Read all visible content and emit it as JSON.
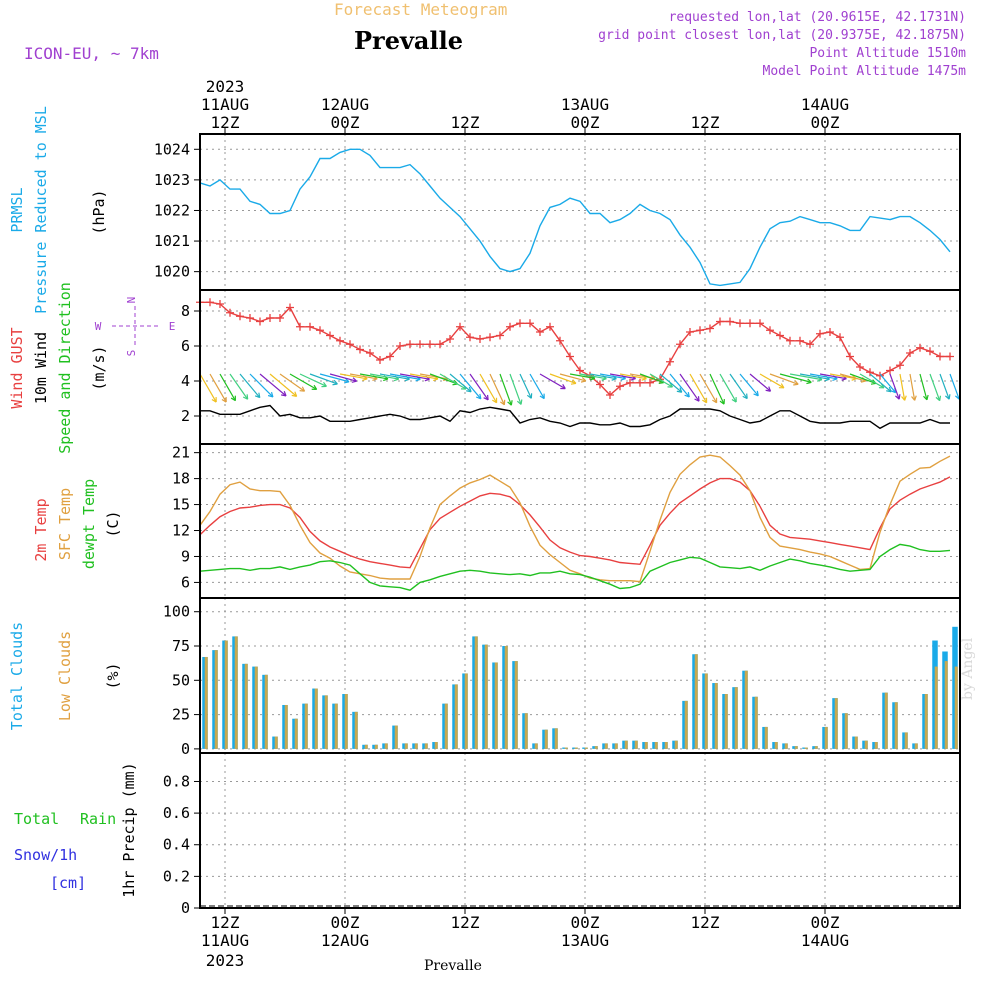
{
  "header": {
    "subtitle": "Forecast Meteogram",
    "title": "Prevalle",
    "model": "ICON-EU, ~ 7km",
    "requested": "requested lon,lat (20.9615E, 42.1731N)",
    "grid_point": "grid point closest lon,lat (20.9375E, 42.1875N)",
    "point_alt": "Point Altitude 1510m",
    "model_alt": "Model Point Altitude 1475m"
  },
  "footer": {
    "location": "Prevalle",
    "signature": "by Angel"
  },
  "time_axis": {
    "top": [
      {
        "t": 0,
        "l1": "2023",
        "l2": "11AUG",
        "l3": "12Z"
      },
      {
        "t": 12,
        "l1": "",
        "l2": "12AUG",
        "l3": "00Z"
      },
      {
        "t": 24,
        "l1": "",
        "l2": "",
        "l3": "12Z"
      },
      {
        "t": 36,
        "l1": "",
        "l2": "13AUG",
        "l3": "00Z"
      },
      {
        "t": 48,
        "l1": "",
        "l2": "",
        "l3": "12Z"
      },
      {
        "t": 60,
        "l1": "",
        "l2": "14AUG",
        "l3": "00Z"
      }
    ],
    "bottom": [
      {
        "t": 0,
        "l1": "12Z",
        "l2": "11AUG",
        "l3": "2023"
      },
      {
        "t": 12,
        "l1": "00Z",
        "l2": "12AUG",
        "l3": ""
      },
      {
        "t": 24,
        "l1": "12Z",
        "l2": "",
        "l3": ""
      },
      {
        "t": 36,
        "l1": "00Z",
        "l2": "13AUG",
        "l3": ""
      },
      {
        "t": 48,
        "l1": "12Z",
        "l2": "",
        "l3": ""
      },
      {
        "t": 60,
        "l1": "00Z",
        "l2": "14AUG",
        "l3": ""
      }
    ],
    "start_offset_hours": -2.5,
    "end_offset_hours": 73.5
  },
  "colors": {
    "pressure": "#1aaae8",
    "gust": "#e84040",
    "wind": "#000000",
    "temp2m": "#e84040",
    "sfc": "#e0a040",
    "dewpt": "#20c020",
    "total_cloud": "#1aaae8",
    "low_cloud": "#c8a850",
    "rain": "#20c020",
    "snow": "#3030e0",
    "purple": "#a040d0"
  },
  "chart_data": [
    {
      "type": "line",
      "panel": "pressure",
      "ylabel_lines": [
        "PRMSL",
        "Pressure Reduced to MSL"
      ],
      "unit": "(hPa)",
      "yticks": [
        1020,
        1021,
        1022,
        1023,
        1024
      ],
      "ylim": [
        1019.4,
        1024.5
      ],
      "series": [
        {
          "name": "PRMSL",
          "values": [
            1022.9,
            1022.8,
            1023.0,
            1022.7,
            1022.7,
            1022.3,
            1022.2,
            1021.9,
            1021.9,
            1022.0,
            1022.7,
            1023.1,
            1023.7,
            1023.7,
            1023.9,
            1024.0,
            1024.0,
            1023.8,
            1023.4,
            1023.4,
            1023.4,
            1023.5,
            1023.2,
            1022.8,
            1022.4,
            1022.1,
            1021.8,
            1021.4,
            1021.0,
            1020.5,
            1020.1,
            1020.0,
            1020.1,
            1020.6,
            1021.5,
            1022.1,
            1022.2,
            1022.4,
            1022.3,
            1021.9,
            1021.9,
            1021.6,
            1021.7,
            1021.9,
            1022.2,
            1022.0,
            1021.9,
            1021.7,
            1021.2,
            1020.8,
            1020.3,
            1019.6,
            1019.55,
            1019.6,
            1019.65,
            1020.1,
            1020.8,
            1021.4,
            1021.6,
            1021.65,
            1021.8,
            1021.7,
            1021.6,
            1021.6,
            1021.5,
            1021.35,
            1021.35,
            1021.8,
            1021.75,
            1021.7,
            1021.8,
            1021.8,
            1021.6,
            1021.35,
            1021.05,
            1020.65
          ]
        }
      ]
    },
    {
      "type": "line",
      "panel": "wind",
      "ylabel_lines": [
        "Wind GUST",
        "10m Wind",
        "Speed and Direction"
      ],
      "unit": "(m/s)",
      "compass": {
        "n": "N",
        "w": "W",
        "e": "E",
        "s": "S"
      },
      "yticks": [
        2,
        4,
        6,
        8
      ],
      "ylim": [
        0.4,
        9.2
      ],
      "series": [
        {
          "name": "Wind GUST",
          "values": [
            8.5,
            8.5,
            8.4,
            7.9,
            7.7,
            7.6,
            7.4,
            7.6,
            7.6,
            8.2,
            7.1,
            7.1,
            6.9,
            6.6,
            6.3,
            6.1,
            5.8,
            5.6,
            5.2,
            5.4,
            6.0,
            6.1,
            6.1,
            6.1,
            6.1,
            6.4,
            7.1,
            6.5,
            6.4,
            6.5,
            6.6,
            7.1,
            7.3,
            7.3,
            6.8,
            7.1,
            6.3,
            5.4,
            4.6,
            4.3,
            3.8,
            3.2,
            3.7,
            3.9,
            3.9,
            3.9,
            4.1,
            5.1,
            6.1,
            6.8,
            6.9,
            7.0,
            7.4,
            7.4,
            7.3,
            7.3,
            7.3,
            6.9,
            6.6,
            6.3,
            6.3,
            6.1,
            6.7,
            6.8,
            6.5,
            5.4,
            4.8,
            4.5,
            4.3,
            4.6,
            4.9,
            5.6,
            5.9,
            5.7,
            5.4,
            5.4
          ]
        },
        {
          "name": "10m Wind",
          "values": [
            2.3,
            2.3,
            2.1,
            2.1,
            2.1,
            2.3,
            2.5,
            2.6,
            2.0,
            2.1,
            1.9,
            1.9,
            2.0,
            1.7,
            1.7,
            1.7,
            1.8,
            1.9,
            2.0,
            2.1,
            2.0,
            1.8,
            1.8,
            1.9,
            2.0,
            1.7,
            2.3,
            2.2,
            2.4,
            2.5,
            2.4,
            2.3,
            1.6,
            1.8,
            1.9,
            1.7,
            1.6,
            1.4,
            1.6,
            1.6,
            1.5,
            1.5,
            1.6,
            1.4,
            1.4,
            1.5,
            1.8,
            2.0,
            2.4,
            2.4,
            2.4,
            2.4,
            2.3,
            2.0,
            1.8,
            1.6,
            1.7,
            2.0,
            2.3,
            2.3,
            2.0,
            1.7,
            1.6,
            1.6,
            1.6,
            1.7,
            1.7,
            1.7,
            1.3,
            1.6,
            1.6,
            1.6,
            1.6,
            1.8,
            1.6,
            1.6
          ]
        },
        {
          "name": "Wind direction (deg)",
          "values": [
            330,
            330,
            330,
            325,
            320,
            315,
            310,
            310,
            305,
            300,
            295,
            290,
            285,
            285,
            280,
            280,
            280,
            280,
            280,
            280,
            280,
            280,
            280,
            290,
            300,
            310,
            320,
            325,
            330,
            335,
            340,
            340,
            335,
            330,
            300,
            290,
            285,
            280,
            280,
            280,
            280,
            280,
            280,
            280,
            290,
            300,
            310,
            320,
            325,
            330,
            330,
            335,
            330,
            325,
            320,
            310,
            300,
            290,
            285,
            280,
            280,
            280,
            280,
            280,
            285,
            290,
            300,
            310,
            320,
            340,
            350,
            350,
            345,
            340,
            340,
            340
          ]
        }
      ]
    },
    {
      "type": "line",
      "panel": "temperature",
      "ylabel_lines": [
        "2m Temp",
        "SFC Temp",
        "dewpt Temp"
      ],
      "unit": "(C)",
      "yticks": [
        6,
        9,
        12,
        15,
        18,
        21
      ],
      "ylim": [
        4.2,
        22
      ],
      "series": [
        {
          "name": "2m Temp",
          "values": [
            11.5,
            12.6,
            13.6,
            14.2,
            14.6,
            14.7,
            14.9,
            15.0,
            15.0,
            14.6,
            13.5,
            11.9,
            10.8,
            10.1,
            9.6,
            9.1,
            8.7,
            8.4,
            8.2,
            8.0,
            7.8,
            7.7,
            9.9,
            12.1,
            13.4,
            14.1,
            14.8,
            15.4,
            16.0,
            16.3,
            16.2,
            15.9,
            15.0,
            13.8,
            12.4,
            10.9,
            10.0,
            9.5,
            9.1,
            9.0,
            8.8,
            8.6,
            8.3,
            8.2,
            8.1,
            10.3,
            12.6,
            14.0,
            15.2,
            16.0,
            16.8,
            17.5,
            18.0,
            18.0,
            17.6,
            16.6,
            14.8,
            12.6,
            11.6,
            11.2,
            11.1,
            11.0,
            10.8,
            10.6,
            10.4,
            10.2,
            10.0,
            9.8,
            12.3,
            14.5,
            15.5,
            16.2,
            16.8,
            17.2,
            17.6,
            18.2
          ]
        },
        {
          "name": "SFC Temp",
          "values": [
            12.6,
            14.2,
            16.2,
            17.3,
            17.6,
            16.8,
            16.6,
            16.6,
            16.5,
            14.9,
            12.6,
            10.6,
            9.4,
            8.8,
            7.9,
            7.2,
            7.0,
            6.8,
            6.5,
            6.4,
            6.4,
            6.4,
            9.0,
            12.3,
            15.0,
            16.0,
            16.9,
            17.5,
            17.9,
            18.4,
            17.7,
            17.0,
            15.2,
            12.5,
            10.3,
            9.2,
            8.3,
            7.4,
            7.0,
            6.5,
            6.3,
            6.2,
            6.2,
            6.2,
            6.1,
            9.6,
            13.2,
            16.4,
            18.5,
            19.6,
            20.5,
            20.7,
            20.5,
            19.5,
            18.4,
            16.6,
            13.5,
            11.2,
            10.2,
            10.0,
            9.8,
            9.5,
            9.3,
            9.0,
            8.5,
            8.0,
            7.5,
            7.6,
            11.8,
            15.0,
            17.7,
            18.5,
            19.2,
            19.3,
            20.0,
            20.6
          ]
        },
        {
          "name": "dewpt Temp",
          "values": [
            7.3,
            7.4,
            7.5,
            7.6,
            7.6,
            7.4,
            7.6,
            7.6,
            7.8,
            7.5,
            7.8,
            8.0,
            8.4,
            8.5,
            8.3,
            8.0,
            7.0,
            6.0,
            5.6,
            5.5,
            5.4,
            5.1,
            6.0,
            6.3,
            6.7,
            7.0,
            7.3,
            7.4,
            7.3,
            7.1,
            7.0,
            6.9,
            7.0,
            6.8,
            7.1,
            7.1,
            7.3,
            7.0,
            6.9,
            6.6,
            6.2,
            5.8,
            5.3,
            5.4,
            5.8,
            7.3,
            7.8,
            8.3,
            8.6,
            8.9,
            8.8,
            8.3,
            7.8,
            7.7,
            7.6,
            7.8,
            7.4,
            7.9,
            8.3,
            8.7,
            8.5,
            8.2,
            8.0,
            7.8,
            7.5,
            7.3,
            7.4,
            7.5,
            9.0,
            9.8,
            10.4,
            10.2,
            9.8,
            9.6,
            9.6,
            9.7
          ]
        }
      ]
    },
    {
      "type": "bar",
      "panel": "clouds",
      "ylabel_lines": [
        "Total Clouds",
        "Low Clouds"
      ],
      "unit": "(%)",
      "yticks": [
        0,
        25,
        50,
        75,
        100
      ],
      "ylim": [
        -3,
        110
      ],
      "series": [
        {
          "name": "Total Clouds",
          "values": [
            67,
            72,
            79,
            82,
            62,
            60,
            54,
            9,
            32,
            22,
            33,
            44,
            39,
            33,
            40,
            27,
            3,
            3,
            4,
            17,
            4,
            4,
            4,
            5,
            33,
            47,
            55,
            82,
            76,
            63,
            75,
            64,
            26,
            4,
            14,
            15,
            1,
            1,
            1,
            2,
            4,
            4,
            6,
            6,
            5,
            5,
            5,
            6,
            35,
            69,
            55,
            48,
            40,
            45,
            57,
            38,
            16,
            5,
            4,
            2,
            1,
            2,
            16,
            37,
            26,
            9,
            6,
            5,
            41,
            34,
            12,
            4,
            40,
            79,
            71,
            89
          ]
        },
        {
          "name": "Low Clouds",
          "values": [
            67,
            72,
            79,
            82,
            62,
            60,
            54,
            9,
            32,
            22,
            33,
            44,
            39,
            33,
            40,
            27,
            3,
            3,
            4,
            17,
            4,
            4,
            4,
            5,
            33,
            47,
            55,
            82,
            76,
            63,
            75,
            64,
            26,
            4,
            14,
            15,
            1,
            1,
            1,
            2,
            4,
            4,
            6,
            6,
            5,
            5,
            5,
            6,
            35,
            69,
            55,
            48,
            40,
            45,
            57,
            38,
            16,
            5,
            4,
            2,
            1,
            2,
            16,
            37,
            26,
            9,
            6,
            5,
            41,
            34,
            12,
            4,
            40,
            60,
            64,
            60
          ]
        }
      ]
    },
    {
      "type": "bar",
      "panel": "precip",
      "ylabel_lines": [
        "1hr Precip (mm)"
      ],
      "left_labels": [
        "Total",
        "Rain",
        "Snow/1h",
        "[cm]"
      ],
      "yticks": [
        0,
        0.2,
        0.4,
        0.6,
        0.8
      ],
      "ylim": [
        0,
        0.98
      ],
      "series": [
        {
          "name": "Total",
          "values": []
        },
        {
          "name": "Rain",
          "values": []
        },
        {
          "name": "Snow/1h",
          "values": []
        }
      ]
    }
  ]
}
